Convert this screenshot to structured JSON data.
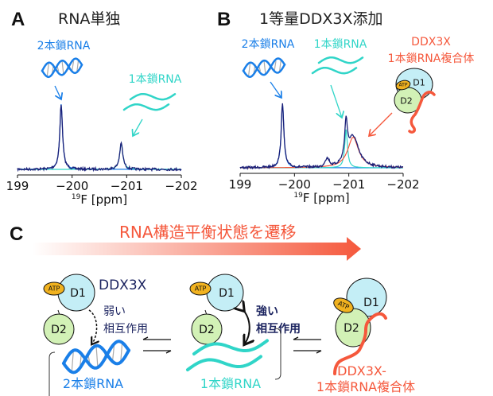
{
  "colors": {
    "dsRNA": "#1a7fe8",
    "ssRNA": "#30d5c8",
    "complex": "#f5583c",
    "data_trace": "#1a1f78",
    "protein_text": "#1c2460",
    "D1": "#c4eef6",
    "D2": "#d2f1b6",
    "ATP": "#f1b21f"
  },
  "panelA": {
    "letter": "A",
    "title": "RNA単独",
    "ds_label": "2本鎖RNA",
    "ss_label": "1本鎖RNA"
  },
  "panelB": {
    "letter": "B",
    "title": "1等量DDX3X添加",
    "ds_label": "2本鎖RNA",
    "ss_label": "1本鎖RNA",
    "complex_label_1": "DDX3X",
    "complex_label_2": "1本鎖RNA複合体"
  },
  "axis": {
    "ticks": [
      "199",
      "−200",
      "−201",
      "−202"
    ],
    "label_sup": "19",
    "label_main": "F [ppm]"
  },
  "chart_data": [
    {
      "type": "line",
      "panel": "A",
      "xlabel": "19F [ppm]",
      "xlim": [
        -199,
        -202
      ],
      "x_ticks": [
        -199,
        -200,
        -201,
        -202
      ],
      "series": [
        {
          "peak_ppm": -199.8,
          "relative_intensity": 1.0,
          "width_ppm": 0.03
        },
        {
          "peak_ppm": -200.9,
          "relative_intensity": 0.4,
          "width_ppm": 0.035
        }
      ]
    },
    {
      "type": "line",
      "panel": "B",
      "xlabel": "19F [ppm]",
      "xlim": [
        -199,
        -202
      ],
      "x_ticks": [
        -199,
        -200,
        -201,
        -202
      ],
      "series": [
        {
          "peak_ppm": -199.78,
          "relative_intensity": 1.0,
          "width_ppm": 0.03
        },
        {
          "peak_ppm": -200.95,
          "relative_intensity": 0.6,
          "width_ppm": 0.03
        },
        {
          "peak_ppm": -201.08,
          "relative_intensity": 0.48,
          "width_ppm": 0.12
        }
      ]
    }
  ],
  "panelC": {
    "letter": "C",
    "banner": "RNA構造平衡状態を遷移",
    "protein_name": "DDX3X",
    "domain_1": "D1",
    "domain_2": "D2",
    "atp": "ATP",
    "weak_1": "弱い",
    "weak_2": "相互作用",
    "strong_1": "強い",
    "strong_2": "相互作用",
    "ds_label": "2本鎖RNA",
    "ss_label": "1本鎖RNA",
    "complex_label_1": "DDX3X-",
    "complex_label_2": "1本鎖RNA複合体"
  }
}
